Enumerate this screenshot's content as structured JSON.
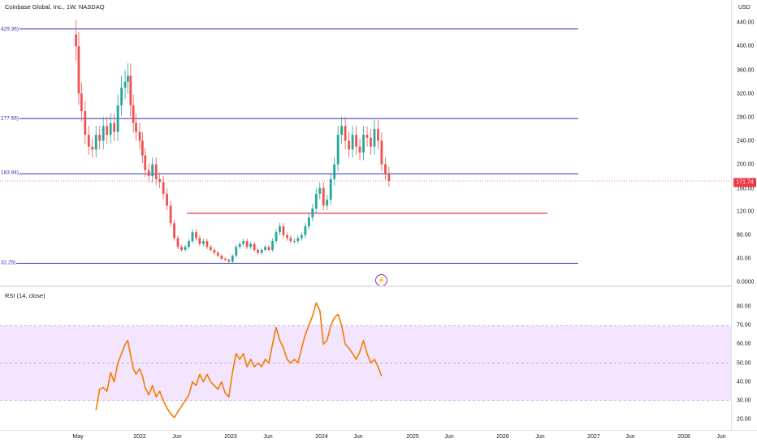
{
  "header": {
    "symbol_title": "Coinbase Global, Inc., 1W, NASDAQ",
    "currency": "USD"
  },
  "price_axis": {
    "ticks": [
      "440.00",
      "400.00",
      "360.00",
      "320.00",
      "280.00",
      "240.00",
      "200.00",
      "160.00",
      "120.00",
      "80.00",
      "40.00",
      "0.0000"
    ],
    "last_price": "171.74"
  },
  "level_labels": [
    "429.36)",
    "277.66)",
    "183.94)",
    "32.25)"
  ],
  "rsi": {
    "title": "RSI (14, close)",
    "ticks": [
      "80.00",
      "70.00",
      "60.00",
      "50.00",
      "40.00",
      "30.00",
      "20.00"
    ]
  },
  "time_axis": {
    "ticks": [
      "May",
      "2022",
      "Jun",
      "2023",
      "Jun",
      "2024",
      "Jun",
      "2025",
      "Jun",
      "2026",
      "Jun",
      "2027",
      "Jun",
      "2028",
      "Jun"
    ]
  },
  "colors": {
    "up": "#26a69a",
    "down": "#ef5350",
    "level_line": "#2a2eb8",
    "support_line": "#e53935",
    "rsi_line": "#f57c00",
    "rsi_band": "#f3e5fd",
    "last_price": "#f23645"
  },
  "icons": {
    "alert": "lightning-icon"
  },
  "chart_data": {
    "type": "candlestick",
    "price_levels": [
      429.36,
      277.66,
      183.94,
      32.25
    ],
    "support_level": 117,
    "last_price": 171.74,
    "price_series_close": [
      [
        2021.3,
        400
      ],
      [
        2021.33,
        320
      ],
      [
        2021.36,
        290
      ],
      [
        2021.4,
        250
      ],
      [
        2021.44,
        230
      ],
      [
        2021.48,
        225
      ],
      [
        2021.52,
        250
      ],
      [
        2021.56,
        240
      ],
      [
        2021.6,
        265
      ],
      [
        2021.64,
        250
      ],
      [
        2021.68,
        270
      ],
      [
        2021.72,
        255
      ],
      [
        2021.76,
        300
      ],
      [
        2021.8,
        330
      ],
      [
        2021.84,
        340
      ],
      [
        2021.87,
        350
      ],
      [
        2021.9,
        300
      ],
      [
        2021.93,
        270
      ],
      [
        2021.96,
        255
      ],
      [
        2022.0,
        240
      ],
      [
        2022.03,
        215
      ],
      [
        2022.06,
        190
      ],
      [
        2022.1,
        180
      ],
      [
        2022.14,
        200
      ],
      [
        2022.18,
        175
      ],
      [
        2022.22,
        170
      ],
      [
        2022.26,
        150
      ],
      [
        2022.3,
        130
      ],
      [
        2022.34,
        100
      ],
      [
        2022.38,
        75
      ],
      [
        2022.42,
        60
      ],
      [
        2022.46,
        55
      ],
      [
        2022.5,
        60
      ],
      [
        2022.54,
        70
      ],
      [
        2022.58,
        85
      ],
      [
        2022.62,
        75
      ],
      [
        2022.66,
        65
      ],
      [
        2022.7,
        70
      ],
      [
        2022.74,
        60
      ],
      [
        2022.78,
        55
      ],
      [
        2022.82,
        50
      ],
      [
        2022.86,
        45
      ],
      [
        2022.9,
        40
      ],
      [
        2022.94,
        38
      ],
      [
        2022.98,
        35
      ],
      [
        2023.02,
        45
      ],
      [
        2023.06,
        60
      ],
      [
        2023.1,
        65
      ],
      [
        2023.14,
        70
      ],
      [
        2023.18,
        60
      ],
      [
        2023.22,
        65
      ],
      [
        2023.26,
        55
      ],
      [
        2023.3,
        50
      ],
      [
        2023.34,
        55
      ],
      [
        2023.38,
        60
      ],
      [
        2023.42,
        55
      ],
      [
        2023.46,
        70
      ],
      [
        2023.5,
        85
      ],
      [
        2023.54,
        95
      ],
      [
        2023.58,
        80
      ],
      [
        2023.62,
        75
      ],
      [
        2023.66,
        70
      ],
      [
        2023.7,
        70
      ],
      [
        2023.74,
        75
      ],
      [
        2023.78,
        80
      ],
      [
        2023.82,
        95
      ],
      [
        2023.86,
        110
      ],
      [
        2023.9,
        125
      ],
      [
        2023.94,
        150
      ],
      [
        2023.98,
        160
      ],
      [
        2024.02,
        130
      ],
      [
        2024.06,
        140
      ],
      [
        2024.1,
        175
      ],
      [
        2024.14,
        200
      ],
      [
        2024.18,
        250
      ],
      [
        2024.22,
        265
      ],
      [
        2024.26,
        240
      ],
      [
        2024.3,
        225
      ],
      [
        2024.34,
        250
      ],
      [
        2024.38,
        230
      ],
      [
        2024.42,
        220
      ],
      [
        2024.46,
        250
      ],
      [
        2024.5,
        245
      ],
      [
        2024.54,
        230
      ],
      [
        2024.58,
        260
      ],
      [
        2024.62,
        240
      ],
      [
        2024.66,
        200
      ],
      [
        2024.7,
        185
      ],
      [
        2024.74,
        172
      ]
    ],
    "rsi_series": [
      [
        2021.52,
        25
      ],
      [
        2021.56,
        36
      ],
      [
        2021.6,
        37
      ],
      [
        2021.64,
        35
      ],
      [
        2021.68,
        45
      ],
      [
        2021.72,
        40
      ],
      [
        2021.76,
        50
      ],
      [
        2021.8,
        55
      ],
      [
        2021.84,
        60
      ],
      [
        2021.87,
        62
      ],
      [
        2021.9,
        54
      ],
      [
        2021.93,
        47
      ],
      [
        2021.96,
        44
      ],
      [
        2022.0,
        47
      ],
      [
        2022.03,
        43
      ],
      [
        2022.06,
        37
      ],
      [
        2022.1,
        33
      ],
      [
        2022.14,
        38
      ],
      [
        2022.18,
        32
      ],
      [
        2022.22,
        35
      ],
      [
        2022.26,
        30
      ],
      [
        2022.3,
        26
      ],
      [
        2022.34,
        23
      ],
      [
        2022.38,
        21
      ],
      [
        2022.42,
        24
      ],
      [
        2022.46,
        27
      ],
      [
        2022.5,
        30
      ],
      [
        2022.54,
        33
      ],
      [
        2022.58,
        40
      ],
      [
        2022.62,
        38
      ],
      [
        2022.66,
        44
      ],
      [
        2022.7,
        40
      ],
      [
        2022.74,
        44
      ],
      [
        2022.78,
        40
      ],
      [
        2022.82,
        38
      ],
      [
        2022.86,
        36
      ],
      [
        2022.9,
        40
      ],
      [
        2022.94,
        34
      ],
      [
        2022.98,
        32
      ],
      [
        2023.02,
        45
      ],
      [
        2023.06,
        55
      ],
      [
        2023.1,
        52
      ],
      [
        2023.14,
        55
      ],
      [
        2023.18,
        48
      ],
      [
        2023.22,
        52
      ],
      [
        2023.26,
        48
      ],
      [
        2023.3,
        50
      ],
      [
        2023.34,
        48
      ],
      [
        2023.38,
        52
      ],
      [
        2023.42,
        50
      ],
      [
        2023.46,
        60
      ],
      [
        2023.5,
        69
      ],
      [
        2023.54,
        62
      ],
      [
        2023.58,
        58
      ],
      [
        2023.62,
        52
      ],
      [
        2023.66,
        50
      ],
      [
        2023.7,
        52
      ],
      [
        2023.74,
        50
      ],
      [
        2023.78,
        58
      ],
      [
        2023.82,
        65
      ],
      [
        2023.86,
        70
      ],
      [
        2023.9,
        75
      ],
      [
        2023.94,
        82
      ],
      [
        2023.98,
        78
      ],
      [
        2024.02,
        60
      ],
      [
        2024.06,
        62
      ],
      [
        2024.1,
        70
      ],
      [
        2024.14,
        74
      ],
      [
        2024.18,
        76
      ],
      [
        2024.22,
        70
      ],
      [
        2024.26,
        60
      ],
      [
        2024.3,
        58
      ],
      [
        2024.34,
        55
      ],
      [
        2024.38,
        52
      ],
      [
        2024.42,
        56
      ],
      [
        2024.46,
        62
      ],
      [
        2024.5,
        55
      ],
      [
        2024.54,
        50
      ],
      [
        2024.58,
        52
      ],
      [
        2024.62,
        48
      ],
      [
        2024.66,
        43
      ]
    ],
    "rsi_band": [
      30,
      70
    ],
    "rsi_midline": 50,
    "price_ylim": [
      0,
      450
    ],
    "rsi_ylim": [
      15,
      85
    ]
  }
}
